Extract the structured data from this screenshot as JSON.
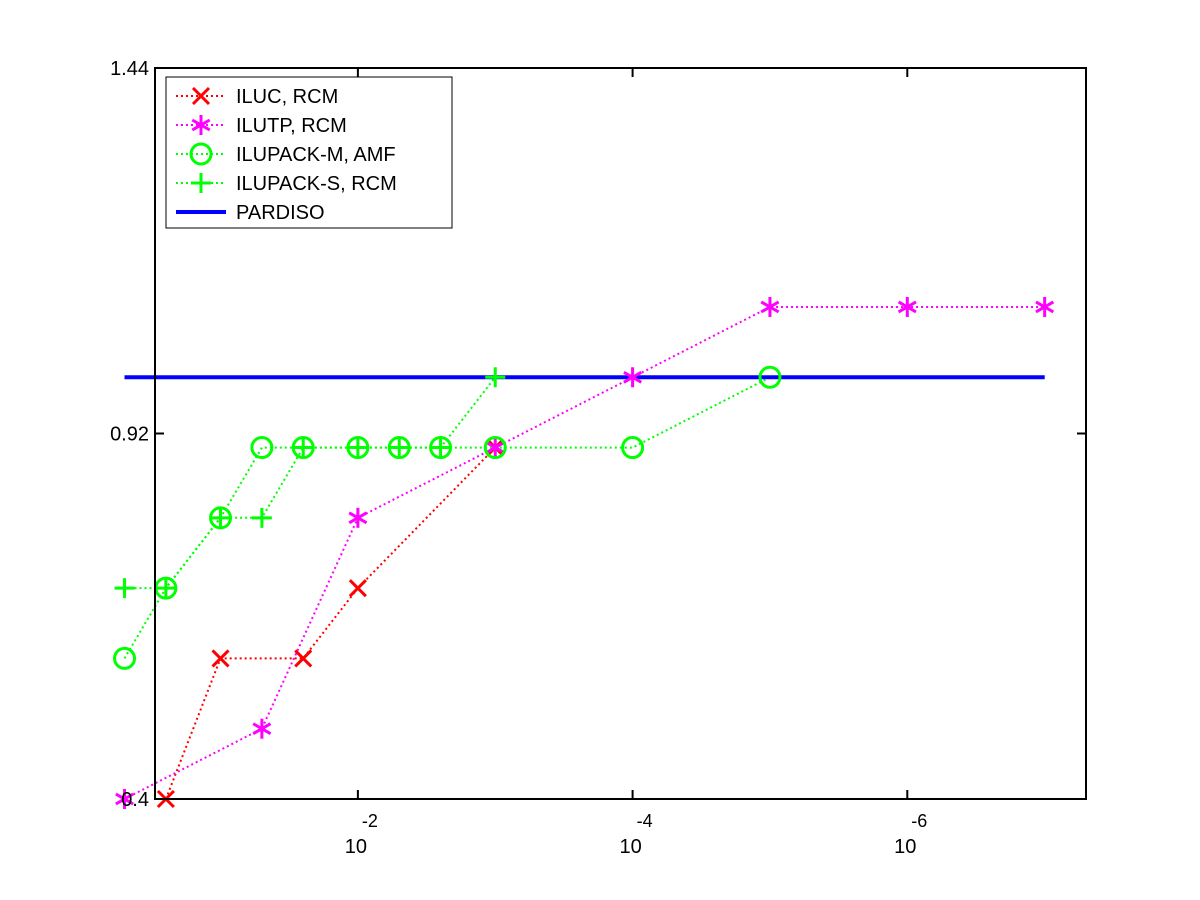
{
  "chart_data": {
    "type": "line",
    "title": "",
    "xlabel": "",
    "ylabel": "",
    "x_scale": "log",
    "x_direction": "decreasing",
    "xlim": [
      0.3,
      5e-08
    ],
    "ylim": [
      0.4,
      1.44
    ],
    "y_ticks": [
      0.4,
      0.92,
      1.44
    ],
    "y_tick_labels": [
      "0.4",
      "0.92",
      "1.44"
    ],
    "x_ticks": [
      {
        "value": 0.01,
        "base": "10",
        "exponent": "-2"
      },
      {
        "value": 0.0001,
        "base": "10",
        "exponent": "-4"
      },
      {
        "value": 1e-06,
        "base": "10",
        "exponent": "-6"
      }
    ],
    "grid": false,
    "legend_position": "top-left",
    "series": [
      {
        "name": "ILUC, RCM",
        "color": "#ff0000",
        "marker": "x",
        "line": "dotted",
        "x": [
          0.25,
          0.1,
          0.025,
          0.01,
          0.001
        ],
        "y": [
          0.4,
          0.6,
          0.6,
          0.7,
          0.9
        ]
      },
      {
        "name": "ILUTP, RCM",
        "color": "#ff00ff",
        "marker": "asterisk",
        "line": "dotted",
        "x": [
          0.5,
          0.05,
          0.01,
          0.001,
          0.0001,
          1e-05,
          1e-06,
          1e-07
        ],
        "y": [
          0.4,
          0.5,
          0.8,
          0.9,
          1.0,
          1.1,
          1.1,
          1.1
        ]
      },
      {
        "name": "ILUPACK-M, AMF",
        "color": "#00ff00",
        "marker": "circle",
        "line": "dotted",
        "x": [
          0.5,
          0.25,
          0.1,
          0.05,
          0.025,
          0.01,
          0.005,
          0.0025,
          0.001,
          0.0001,
          1e-05
        ],
        "y": [
          0.6,
          0.7,
          0.8,
          0.9,
          0.9,
          0.9,
          0.9,
          0.9,
          0.9,
          0.9,
          1.0
        ]
      },
      {
        "name": "ILUPACK-S, RCM",
        "color": "#00ff00",
        "marker": "plus",
        "line": "dotted",
        "x": [
          0.5,
          0.25,
          0.1,
          0.05,
          0.025,
          0.01,
          0.005,
          0.0025,
          0.001
        ],
        "y": [
          0.7,
          0.7,
          0.8,
          0.8,
          0.9,
          0.9,
          0.9,
          0.9,
          1.0
        ]
      },
      {
        "name": "PARDISO",
        "color": "#0000ff",
        "marker": "none",
        "line": "solid",
        "x": [
          0.5,
          1e-07
        ],
        "y": [
          1.0,
          1.0
        ]
      }
    ]
  }
}
